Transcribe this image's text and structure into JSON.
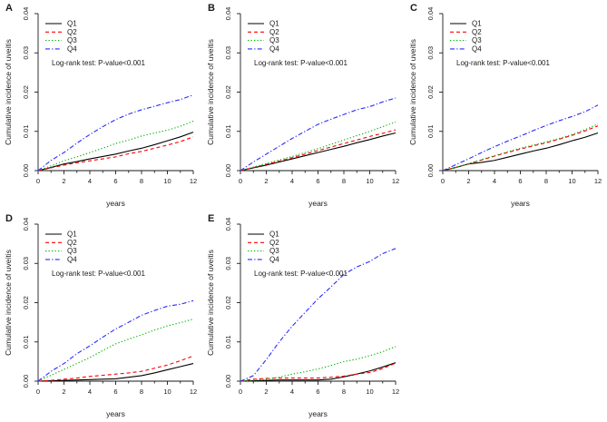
{
  "figure": {
    "background": "#ffffff",
    "description": "Five-panel cumulative incidence figure"
  },
  "series_styles": [
    {
      "name": "Q1",
      "color": "#000000",
      "dash": "solid"
    },
    {
      "name": "Q2",
      "color": "#ff0000",
      "dash": "dashed"
    },
    {
      "name": "Q3",
      "color": "#00b300",
      "dash": "dotted"
    },
    {
      "name": "Q4",
      "color": "#2a2aff",
      "dash": "dashdot"
    }
  ],
  "chart_data": [
    {
      "type": "line",
      "panel_label": "A",
      "xlabel": "years",
      "ylabel": "Cumulative incidence of uveitis",
      "annotation": "Log-rank test: P-value<0.001",
      "legend": [
        "Q1",
        "Q2",
        "Q3",
        "Q4"
      ],
      "legend_position": "top-left",
      "grid": false,
      "xlim": [
        0,
        12
      ],
      "ylim": [
        0,
        0.04
      ],
      "xticks": [
        0,
        2,
        4,
        6,
        8,
        10,
        12
      ],
      "yticks": [
        0.0,
        0.01,
        0.02,
        0.03,
        0.04
      ],
      "x": [
        0,
        1,
        2,
        3,
        4,
        5,
        6,
        7,
        8,
        9,
        10,
        11,
        12
      ],
      "series": [
        {
          "name": "Q1",
          "values": [
            0,
            0.0008,
            0.0017,
            0.0023,
            0.003,
            0.0036,
            0.0042,
            0.005,
            0.0057,
            0.0066,
            0.0076,
            0.0086,
            0.0098
          ]
        },
        {
          "name": "Q2",
          "values": [
            0,
            0.0007,
            0.0014,
            0.002,
            0.0025,
            0.003,
            0.0035,
            0.0043,
            0.0049,
            0.0057,
            0.0065,
            0.0074,
            0.0086
          ]
        },
        {
          "name": "Q3",
          "values": [
            0,
            0.0012,
            0.0025,
            0.0035,
            0.0046,
            0.0057,
            0.0069,
            0.0078,
            0.0088,
            0.0096,
            0.0103,
            0.0113,
            0.0126
          ]
        },
        {
          "name": "Q4",
          "values": [
            0,
            0.0026,
            0.0046,
            0.007,
            0.0092,
            0.0112,
            0.013,
            0.0144,
            0.0155,
            0.0164,
            0.0173,
            0.0181,
            0.0193
          ]
        }
      ]
    },
    {
      "type": "line",
      "panel_label": "B",
      "xlabel": "years",
      "ylabel": "Cumulative incidence of uveitis",
      "annotation": "Log-rank test: P-value<0.001",
      "legend": [
        "Q1",
        "Q2",
        "Q3",
        "Q4"
      ],
      "legend_position": "top-left",
      "grid": false,
      "xlim": [
        0,
        12
      ],
      "ylim": [
        0,
        0.04
      ],
      "xticks": [
        0,
        2,
        4,
        6,
        8,
        10,
        12
      ],
      "yticks": [
        0.0,
        0.01,
        0.02,
        0.03,
        0.04
      ],
      "x": [
        0,
        1,
        2,
        3,
        4,
        5,
        6,
        7,
        8,
        9,
        10,
        11,
        12
      ],
      "series": [
        {
          "name": "Q1",
          "values": [
            0,
            0.0007,
            0.0014,
            0.0022,
            0.003,
            0.0038,
            0.0046,
            0.0054,
            0.0062,
            0.0071,
            0.0079,
            0.0088,
            0.0096
          ]
        },
        {
          "name": "Q2",
          "values": [
            0,
            0.0008,
            0.0016,
            0.0024,
            0.0033,
            0.0042,
            0.0051,
            0.006,
            0.0069,
            0.0078,
            0.0087,
            0.0095,
            0.0104
          ]
        },
        {
          "name": "Q3",
          "values": [
            0,
            0.0009,
            0.0018,
            0.0027,
            0.0036,
            0.0046,
            0.0056,
            0.0067,
            0.0078,
            0.0089,
            0.01,
            0.0112,
            0.0124
          ]
        },
        {
          "name": "Q4",
          "values": [
            0,
            0.0022,
            0.0042,
            0.0062,
            0.0082,
            0.01,
            0.0118,
            0.0131,
            0.0143,
            0.0155,
            0.0163,
            0.0175,
            0.0185
          ]
        }
      ]
    },
    {
      "type": "line",
      "panel_label": "C",
      "xlabel": "years",
      "ylabel": "Cumulative incidence of uveitis",
      "annotation": "Log-rank test: P-value<0.001",
      "legend": [
        "Q1",
        "Q2",
        "Q3",
        "Q4"
      ],
      "legend_position": "top-left",
      "grid": false,
      "xlim": [
        0,
        12
      ],
      "ylim": [
        0,
        0.04
      ],
      "xticks": [
        0,
        2,
        4,
        6,
        8,
        10,
        12
      ],
      "yticks": [
        0.0,
        0.01,
        0.02,
        0.03,
        0.04
      ],
      "x": [
        0,
        1,
        2,
        3,
        4,
        5,
        6,
        7,
        8,
        9,
        10,
        11,
        12
      ],
      "series": [
        {
          "name": "Q1",
          "values": [
            0,
            0.0008,
            0.0017,
            0.0021,
            0.0026,
            0.0034,
            0.0042,
            0.005,
            0.0057,
            0.0066,
            0.0076,
            0.0085,
            0.0096
          ]
        },
        {
          "name": "Q2",
          "values": [
            0,
            0.0008,
            0.0017,
            0.0027,
            0.0037,
            0.0046,
            0.0055,
            0.0063,
            0.0071,
            0.008,
            0.009,
            0.0101,
            0.0114
          ]
        },
        {
          "name": "Q3",
          "values": [
            0,
            0.0008,
            0.0018,
            0.0028,
            0.0038,
            0.0048,
            0.0057,
            0.0065,
            0.0073,
            0.0082,
            0.0092,
            0.0104,
            0.0119
          ]
        },
        {
          "name": "Q4",
          "values": [
            0,
            0.0015,
            0.003,
            0.0046,
            0.0061,
            0.0075,
            0.0088,
            0.0102,
            0.0115,
            0.0127,
            0.0138,
            0.015,
            0.0167
          ]
        }
      ]
    },
    {
      "type": "line",
      "panel_label": "D",
      "xlabel": "years",
      "ylabel": "Cumulative incidence of uveitis",
      "annotation": "Log-rank test: P-value<0.001",
      "legend": [
        "Q1",
        "Q2",
        "Q3",
        "Q4"
      ],
      "legend_position": "top-left",
      "grid": false,
      "xlim": [
        0,
        12
      ],
      "ylim": [
        0,
        0.04
      ],
      "xticks": [
        0,
        2,
        4,
        6,
        8,
        10,
        12
      ],
      "yticks": [
        0.0,
        0.01,
        0.02,
        0.03,
        0.04
      ],
      "x": [
        0,
        1,
        2,
        3,
        4,
        5,
        6,
        7,
        8,
        9,
        10,
        11,
        12
      ],
      "series": [
        {
          "name": "Q1",
          "values": [
            0,
            0.0001,
            0.0002,
            0.0003,
            0.0004,
            0.0005,
            0.0006,
            0.001,
            0.0014,
            0.0021,
            0.0029,
            0.0037,
            0.0045
          ]
        },
        {
          "name": "Q2",
          "values": [
            0,
            0.0002,
            0.0005,
            0.0008,
            0.0012,
            0.0015,
            0.0018,
            0.0021,
            0.0025,
            0.0033,
            0.0041,
            0.0052,
            0.0064
          ]
        },
        {
          "name": "Q3",
          "values": [
            0,
            0.0015,
            0.003,
            0.0045,
            0.006,
            0.0078,
            0.0095,
            0.0107,
            0.0118,
            0.013,
            0.0141,
            0.0149,
            0.0158
          ]
        },
        {
          "name": "Q4",
          "values": [
            0,
            0.0025,
            0.0045,
            0.007,
            0.009,
            0.0112,
            0.0133,
            0.015,
            0.0168,
            0.018,
            0.0191,
            0.0196,
            0.0205
          ]
        }
      ]
    },
    {
      "type": "line",
      "panel_label": "E",
      "xlabel": "years",
      "ylabel": "Cumulative incidence of uveitis",
      "annotation": "Log-rank test: P-value<0.001",
      "legend": [
        "Q1",
        "Q2",
        "Q3",
        "Q4"
      ],
      "legend_position": "top-left",
      "grid": false,
      "xlim": [
        0,
        12
      ],
      "ylim": [
        0,
        0.04
      ],
      "xticks": [
        0,
        2,
        4,
        6,
        8,
        10,
        12
      ],
      "yticks": [
        0.0,
        0.01,
        0.02,
        0.03,
        0.04
      ],
      "x": [
        0,
        1,
        2,
        3,
        4,
        5,
        6,
        7,
        8,
        9,
        10,
        11,
        12
      ],
      "series": [
        {
          "name": "Q1",
          "values": [
            0,
            0.0001,
            0.0002,
            0.0003,
            0.0003,
            0.0003,
            0.0003,
            0.0005,
            0.0011,
            0.0018,
            0.0026,
            0.0036,
            0.0047
          ]
        },
        {
          "name": "Q2",
          "values": [
            0,
            0.0005,
            0.0007,
            0.0008,
            0.0008,
            0.0008,
            0.0008,
            0.001,
            0.0013,
            0.0018,
            0.0022,
            0.0032,
            0.0046
          ]
        },
        {
          "name": "Q3",
          "values": [
            0,
            0.0002,
            0.0005,
            0.001,
            0.0018,
            0.0024,
            0.0031,
            0.004,
            0.005,
            0.0056,
            0.0065,
            0.0075,
            0.0088
          ]
        },
        {
          "name": "Q4",
          "values": [
            0,
            0.0014,
            0.0055,
            0.01,
            0.014,
            0.0175,
            0.021,
            0.024,
            0.0272,
            0.0291,
            0.0305,
            0.0325,
            0.0338
          ]
        }
      ]
    }
  ]
}
